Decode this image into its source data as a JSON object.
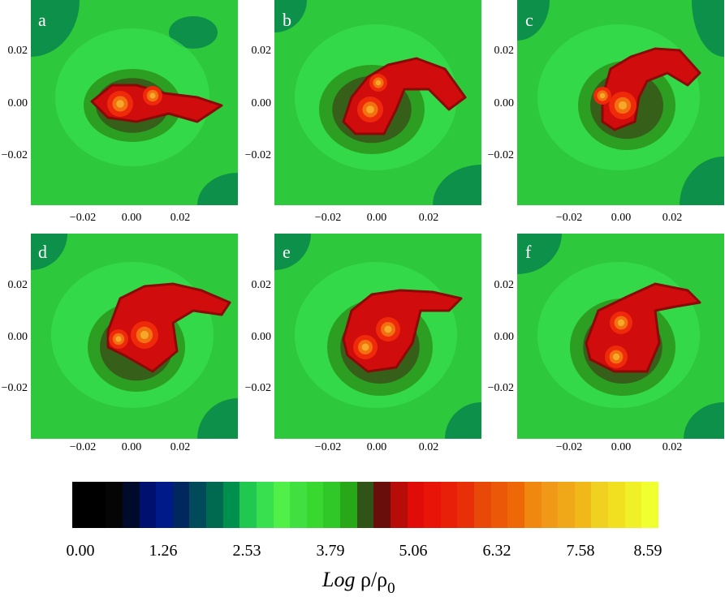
{
  "chart_data": [
    {
      "type": "heatmap",
      "panel_label": "a",
      "xticks": [
        "−0.02",
        "0.00",
        "0.02"
      ],
      "yticks": [
        "0.02",
        "0.00",
        "−0.02"
      ]
    },
    {
      "type": "heatmap",
      "panel_label": "b",
      "xticks": [
        "−0.02",
        "0.00",
        "0.02"
      ],
      "yticks": [
        "0.02",
        "0.00",
        "−0.02"
      ]
    },
    {
      "type": "heatmap",
      "panel_label": "c",
      "xticks": [
        "−0.02",
        "0.00",
        "0.02"
      ],
      "yticks": [
        "0.02",
        "0.00",
        "−0.02"
      ]
    },
    {
      "type": "heatmap",
      "panel_label": "d",
      "xticks": [
        "−0.02",
        "0.00",
        "0.02"
      ],
      "yticks": [
        "0.02",
        "0.00",
        "−0.02"
      ]
    },
    {
      "type": "heatmap",
      "panel_label": "e",
      "xticks": [
        "−0.02",
        "0.00",
        "0.02"
      ],
      "yticks": [
        "0.02",
        "0.00",
        "−0.02"
      ]
    },
    {
      "type": "heatmap",
      "panel_label": "f",
      "xticks": [
        "−0.02",
        "0.00",
        "0.02"
      ],
      "yticks": [
        "0.02",
        "0.00",
        "−0.02"
      ]
    }
  ],
  "colorbar": {
    "ticks": [
      "0.00",
      "1.26",
      "2.53",
      "3.79",
      "5.06",
      "6.32",
      "7.58",
      "8.59"
    ],
    "range": [
      0.0,
      8.59
    ],
    "label_log": "Log",
    "label_rho": "ρ/ρ",
    "label_sub": "0",
    "colors": [
      "#000000",
      "#000000",
      "#050505",
      "#000a2a",
      "#00106e",
      "#001a8a",
      "#00285e",
      "#004a5a",
      "#006a50",
      "#00904e",
      "#20c850",
      "#38e050",
      "#50f048",
      "#40e040",
      "#38d830",
      "#30c828",
      "#28a818",
      "#305418",
      "#6a0e0c",
      "#b80c08",
      "#e00c08",
      "#e81408",
      "#e82008",
      "#e83008",
      "#e84808",
      "#ea5808",
      "#ee6808",
      "#f08810",
      "#f09818",
      "#f0a818",
      "#f0b818",
      "#f0d020",
      "#f0e020",
      "#f0f028",
      "#f0ff30"
    ]
  },
  "colors": {
    "outer_dark": "#0a8a4a",
    "background": "#2ec83c",
    "disk": "#38e050",
    "shell": "#2a9018",
    "shell_dark": "#3a4a18",
    "filament": "#d00c0c",
    "core": "#ee2a0a",
    "hot": "#f27010",
    "peak": "#f6a828"
  }
}
